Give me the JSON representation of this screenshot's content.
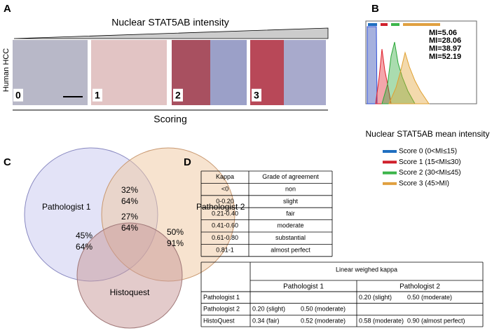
{
  "panel_a": {
    "label": "A",
    "title": "Nuclear STAT5AB intensity",
    "side_label": "Human HCC",
    "image_labels": [
      "0",
      "1",
      "2",
      "3"
    ],
    "xlabel": "Scoring"
  },
  "panel_b": {
    "label": "B",
    "mi_labels": [
      {
        "text": "MI=5.06",
        "color": "#2f4fd8"
      },
      {
        "text": "MI=28.06",
        "color": "#e0202c"
      },
      {
        "text": "MI=38.97",
        "color": "#2aa838"
      },
      {
        "text": "MI=52.19",
        "color": "#e0a030"
      }
    ],
    "xlabel": "Nuclear STAT5AB mean intensity",
    "legend": [
      {
        "text": "Score 0 (0<MI≤15)",
        "color": "#1f6fc0"
      },
      {
        "text": "Score 1 (15<MI≤30)",
        "color": "#d0202c"
      },
      {
        "text": "Score 2 (30<MI≤45)",
        "color": "#3bb54a"
      },
      {
        "text": "Score 3 (45>MI)",
        "color": "#e0a040"
      }
    ]
  },
  "panel_c": {
    "label": "C",
    "sets": [
      "Pathologist 1",
      "Pathologist 2",
      "Histoquest"
    ],
    "regions": [
      {
        "black": "32%",
        "red": "64%"
      },
      {
        "black": "27%",
        "red": "64%"
      },
      {
        "black": "45%",
        "red": "64%"
      },
      {
        "black": "50%",
        "red": "91%"
      }
    ]
  },
  "panel_d": {
    "label": "D",
    "kappa_table": {
      "header": [
        "Kappa",
        "Grade of agreement"
      ],
      "rows": [
        [
          "<0",
          "non"
        ],
        [
          "0-0.20",
          "slight"
        ],
        [
          "0.21-0.40",
          "fair"
        ],
        [
          "0.41-0.60",
          "moderate"
        ],
        [
          "0.61-0.80",
          "substantial"
        ],
        [
          "0.81-1",
          "almost perfect"
        ]
      ]
    },
    "agreement_table": {
      "title": "Linear weighed kappa",
      "columns": [
        "Pathologist 1",
        "Pathologist 2"
      ],
      "rows": [
        {
          "name": "Pathologist 1",
          "cells": [
            null,
            [
              "0.20 (slight)",
              "0.50 (moderate)"
            ]
          ]
        },
        {
          "name": "Pathologist 2",
          "cells": [
            [
              "0.20 (slight)",
              "0.50 (moderate)"
            ],
            null
          ]
        },
        {
          "name": "HistoQuest",
          "cells": [
            [
              "0.34 (fair)",
              "0.52 (moderate)"
            ],
            [
              "0.58 (moderate)",
              "0.90 (almost perfect)"
            ]
          ]
        }
      ]
    }
  }
}
